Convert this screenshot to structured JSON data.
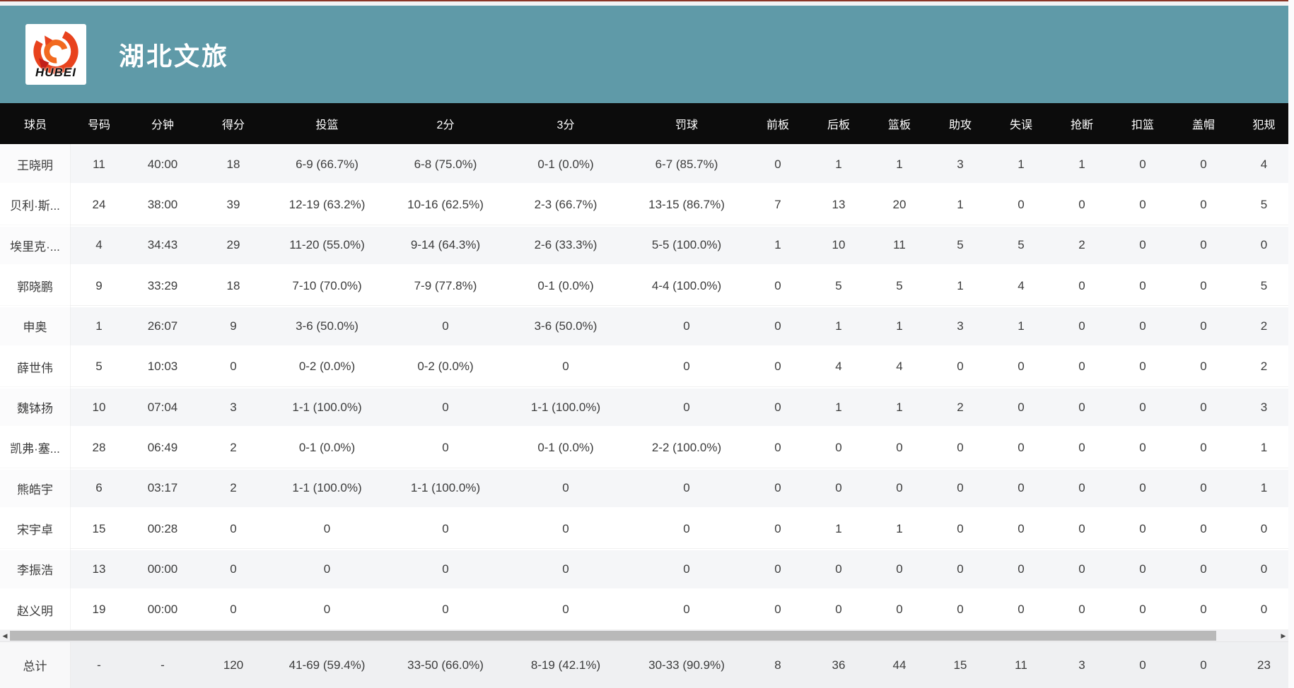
{
  "header": {
    "team_name": "湖北文旅",
    "logo_text": "HUBEI"
  },
  "icons": {
    "scroll_left": "◀",
    "scroll_right": "▶"
  },
  "colors": {
    "header_teal": "#5f9aa8",
    "table_header_bg": "#0c0c0c",
    "row_alt_bg": "#f5f6f8",
    "scrollbar_thumb": "#b9b9b9",
    "logo_red": "#e8421d",
    "logo_orange": "#f2691f"
  },
  "table": {
    "columns": [
      {
        "key": "player",
        "label": "球员"
      },
      {
        "key": "number",
        "label": "号码"
      },
      {
        "key": "minutes",
        "label": "分钟"
      },
      {
        "key": "points",
        "label": "得分"
      },
      {
        "key": "fg",
        "label": "投篮"
      },
      {
        "key": "two_pt",
        "label": "2分"
      },
      {
        "key": "three_pt",
        "label": "3分"
      },
      {
        "key": "ft",
        "label": "罚球"
      },
      {
        "key": "oreb",
        "label": "前板"
      },
      {
        "key": "dreb",
        "label": "后板"
      },
      {
        "key": "reb",
        "label": "篮板"
      },
      {
        "key": "ast",
        "label": "助攻"
      },
      {
        "key": "to",
        "label": "失误"
      },
      {
        "key": "stl",
        "label": "抢断"
      },
      {
        "key": "dunk",
        "label": "扣篮"
      },
      {
        "key": "blk",
        "label": "盖帽"
      },
      {
        "key": "pf",
        "label": "犯规"
      }
    ],
    "rows": [
      {
        "cells": [
          "王晓明",
          "11",
          "40:00",
          "18",
          "6-9 (66.7%)",
          "6-8 (75.0%)",
          "0-1 (0.0%)",
          "6-7 (85.7%)",
          "0",
          "1",
          "1",
          "3",
          "1",
          "1",
          "0",
          "0",
          "4"
        ]
      },
      {
        "cells": [
          "贝利·斯...",
          "24",
          "38:00",
          "39",
          "12-19 (63.2%)",
          "10-16 (62.5%)",
          "2-3 (66.7%)",
          "13-15 (86.7%)",
          "7",
          "13",
          "20",
          "1",
          "0",
          "0",
          "0",
          "0",
          "5"
        ]
      },
      {
        "cells": [
          "埃里克·...",
          "4",
          "34:43",
          "29",
          "11-20 (55.0%)",
          "9-14 (64.3%)",
          "2-6 (33.3%)",
          "5-5 (100.0%)",
          "1",
          "10",
          "11",
          "5",
          "5",
          "2",
          "0",
          "0",
          "0"
        ]
      },
      {
        "cells": [
          "郭晓鹏",
          "9",
          "33:29",
          "18",
          "7-10 (70.0%)",
          "7-9 (77.8%)",
          "0-1 (0.0%)",
          "4-4 (100.0%)",
          "0",
          "5",
          "5",
          "1",
          "4",
          "0",
          "0",
          "0",
          "5"
        ]
      },
      {
        "cells": [
          "申奥",
          "1",
          "26:07",
          "9",
          "3-6 (50.0%)",
          "0",
          "3-6 (50.0%)",
          "0",
          "0",
          "1",
          "1",
          "3",
          "1",
          "0",
          "0",
          "0",
          "2"
        ]
      },
      {
        "cells": [
          "薛世伟",
          "5",
          "10:03",
          "0",
          "0-2 (0.0%)",
          "0-2 (0.0%)",
          "0",
          "0",
          "0",
          "4",
          "4",
          "0",
          "0",
          "0",
          "0",
          "0",
          "2"
        ]
      },
      {
        "cells": [
          "魏钵扬",
          "10",
          "07:04",
          "3",
          "1-1 (100.0%)",
          "0",
          "1-1 (100.0%)",
          "0",
          "0",
          "1",
          "1",
          "2",
          "0",
          "0",
          "0",
          "0",
          "3"
        ]
      },
      {
        "cells": [
          "凯弗·塞...",
          "28",
          "06:49",
          "2",
          "0-1 (0.0%)",
          "0",
          "0-1 (0.0%)",
          "2-2 (100.0%)",
          "0",
          "0",
          "0",
          "0",
          "0",
          "0",
          "0",
          "0",
          "1"
        ]
      },
      {
        "cells": [
          "熊皓宇",
          "6",
          "03:17",
          "2",
          "1-1 (100.0%)",
          "1-1 (100.0%)",
          "0",
          "0",
          "0",
          "0",
          "0",
          "0",
          "0",
          "0",
          "0",
          "0",
          "1"
        ]
      },
      {
        "cells": [
          "宋宇卓",
          "15",
          "00:28",
          "0",
          "0",
          "0",
          "0",
          "0",
          "0",
          "1",
          "1",
          "0",
          "0",
          "0",
          "0",
          "0",
          "0"
        ]
      },
      {
        "cells": [
          "李振浩",
          "13",
          "00:00",
          "0",
          "0",
          "0",
          "0",
          "0",
          "0",
          "0",
          "0",
          "0",
          "0",
          "0",
          "0",
          "0",
          "0"
        ]
      },
      {
        "cells": [
          "赵义明",
          "19",
          "00:00",
          "0",
          "0",
          "0",
          "0",
          "0",
          "0",
          "0",
          "0",
          "0",
          "0",
          "0",
          "0",
          "0",
          "0"
        ]
      }
    ],
    "total_row": {
      "cells": [
        "总计",
        "-",
        "-",
        "120",
        "41-69 (59.4%)",
        "33-50 (66.0%)",
        "8-19 (42.1%)",
        "30-33 (90.9%)",
        "8",
        "36",
        "44",
        "15",
        "11",
        "3",
        "0",
        "0",
        "23"
      ]
    }
  }
}
